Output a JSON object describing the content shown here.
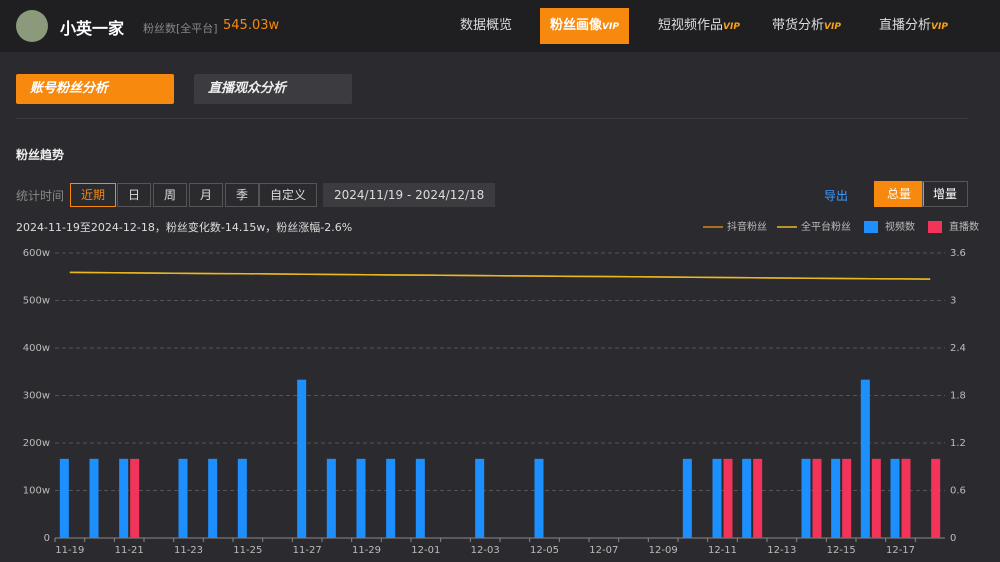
{
  "header": {
    "name": "小英一家",
    "fans_label": "粉丝数[全平台]",
    "fans_value": "545.03w",
    "nav": [
      {
        "label": "数据概览"
      },
      {
        "label": "粉丝画像",
        "badge": "VIP"
      },
      {
        "label": "短视频作品",
        "badge": "VIP"
      },
      {
        "label": "带货分析",
        "badge": "VIP"
      },
      {
        "label": "直播分析",
        "badge": "VIP"
      }
    ]
  },
  "tabs": [
    "账号粉丝分析",
    "直播观众分析"
  ],
  "section_title": "粉丝趋势",
  "filters": {
    "label": "统计时间",
    "options": [
      "近期",
      "日",
      "周",
      "月",
      "季",
      "自定义"
    ],
    "date_range": "2024/11/19 - 2024/12/18",
    "export": "导出",
    "modes": [
      "总量",
      "增量"
    ]
  },
  "chart_data": {
    "type": "combo",
    "subtitle": "2024-11-19至2024-12-18，粉丝变化数-14.15w，粉丝涨幅-2.6%",
    "categories": [
      "11-19",
      null,
      "11-21",
      null,
      "11-23",
      null,
      "11-25",
      null,
      "11-27",
      null,
      "11-29",
      null,
      "12-01",
      null,
      "12-03",
      null,
      "12-05",
      null,
      "12-07",
      null,
      "12-09",
      null,
      "12-11",
      null,
      "12-13",
      null,
      "12-15",
      null,
      "12-17",
      null
    ],
    "ylim": [
      0,
      600
    ],
    "yticks": [
      0,
      {
        "value": 100,
        "label": "100w"
      },
      {
        "value": 200,
        "label": "200w"
      },
      {
        "value": 300,
        "label": "300w"
      },
      {
        "value": 400,
        "label": "400w"
      },
      {
        "value": 500,
        "label": "500w"
      },
      {
        "value": 600,
        "label": "600w"
      }
    ],
    "y2lim": [
      0,
      3.6
    ],
    "y2ticks": [
      0,
      0.6,
      1.2,
      1.8,
      2.4,
      3,
      3.6
    ],
    "grid": true,
    "legend": "top-right",
    "series": [
      {
        "name": "抖音粉丝",
        "type": "line",
        "color": "#d4851a",
        "values": [
          559.2,
          558.7,
          558.2,
          557.7,
          557.2,
          556.7,
          556.3,
          555.8,
          555.3,
          554.8,
          554.3,
          553.8,
          553.3,
          552.8,
          552.3,
          551.8,
          551.3,
          550.9,
          550.4,
          549.9,
          549.4,
          548.9,
          548.4,
          547.9,
          547.4,
          546.9,
          546.4,
          545.9,
          545.5,
          545.0
        ]
      },
      {
        "name": "全平台粉丝",
        "type": "line",
        "color": "#e8b923",
        "values": [
          559.2,
          558.7,
          558.2,
          557.7,
          557.2,
          556.7,
          556.3,
          555.8,
          555.3,
          554.8,
          554.3,
          553.8,
          553.3,
          552.8,
          552.3,
          551.8,
          551.3,
          550.9,
          550.4,
          549.9,
          549.4,
          548.9,
          548.4,
          547.9,
          547.4,
          546.9,
          546.4,
          545.9,
          545.5,
          545.0
        ]
      },
      {
        "name": "视频数",
        "type": "bar",
        "axis": "y2",
        "color": "#1e8fff",
        "values": [
          1,
          1,
          1,
          0,
          1,
          1,
          1,
          0,
          2,
          1,
          1,
          1,
          1,
          0,
          1,
          0,
          1,
          0,
          0,
          0,
          0,
          1,
          1,
          1,
          0,
          1,
          1,
          2,
          1,
          0
        ]
      },
      {
        "name": "直播数",
        "type": "bar",
        "axis": "y2",
        "color": "#f2335a",
        "values": [
          0,
          0,
          1,
          0,
          0,
          0,
          0,
          0,
          0,
          0,
          0,
          0,
          0,
          0,
          0,
          0,
          0,
          0,
          0,
          0,
          0,
          0,
          1,
          1,
          0,
          1,
          1,
          1,
          1,
          1
        ]
      }
    ]
  }
}
